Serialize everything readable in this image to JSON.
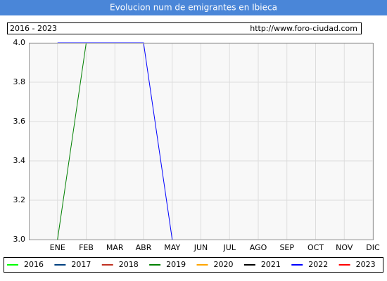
{
  "chart_data": {
    "type": "line",
    "title": "Evolucion num de emigrantes en Ibieca",
    "subtitle": "2016 - 2023",
    "source": "http://www.foro-ciudad.com",
    "categories": [
      "ENE",
      "FEB",
      "MAR",
      "ABR",
      "MAY",
      "JUN",
      "JUL",
      "AGO",
      "SEP",
      "OCT",
      "NOV",
      "DIC"
    ],
    "ylim": [
      3,
      4
    ],
    "yticks": [
      {
        "value": 3,
        "label": "3.0"
      },
      3.2,
      3.4,
      3.6,
      3.8,
      {
        "value": 4,
        "label": "4.0"
      }
    ],
    "grid": true,
    "legend": "bottom",
    "series": [
      {
        "name": "2016",
        "color": "#00ff00",
        "values": [
          null,
          null,
          null,
          null,
          null,
          null,
          null,
          null,
          null,
          null,
          null,
          null
        ]
      },
      {
        "name": "2017",
        "color": "#004080",
        "values": [
          null,
          null,
          null,
          null,
          null,
          null,
          null,
          null,
          null,
          null,
          null,
          null
        ]
      },
      {
        "name": "2018",
        "color": "#c03020",
        "values": [
          null,
          null,
          null,
          null,
          null,
          null,
          null,
          null,
          null,
          null,
          null,
          null
        ]
      },
      {
        "name": "2019",
        "color": "#008000",
        "values": [
          3,
          4,
          null,
          null,
          null,
          null,
          null,
          null,
          null,
          null,
          null,
          null
        ]
      },
      {
        "name": "2020",
        "color": "#ffa500",
        "values": [
          null,
          null,
          null,
          null,
          null,
          null,
          null,
          null,
          null,
          null,
          null,
          null
        ]
      },
      {
        "name": "2021",
        "color": "#000000",
        "values": [
          null,
          null,
          null,
          null,
          null,
          null,
          null,
          null,
          null,
          null,
          null,
          null
        ]
      },
      {
        "name": "2022",
        "color": "#0000ff",
        "values": [
          4,
          4,
          4,
          4,
          3,
          null,
          null,
          null,
          null,
          null,
          null,
          null
        ]
      },
      {
        "name": "2023",
        "color": "#ff0000",
        "values": [
          null,
          null,
          null,
          null,
          null,
          null,
          null,
          null,
          null,
          null,
          null,
          null
        ]
      }
    ]
  }
}
